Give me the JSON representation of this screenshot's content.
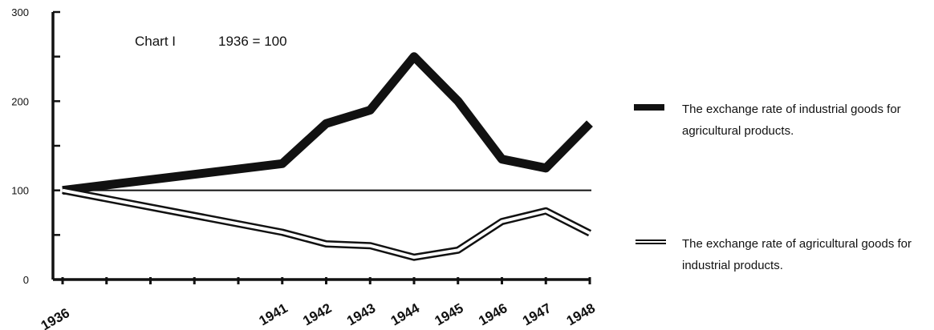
{
  "chart_data": {
    "type": "line",
    "title": "Chart I",
    "subtitle": "1936 = 100",
    "xlabel": "",
    "ylabel": "",
    "ylim": [
      0,
      300
    ],
    "yticks": [
      0,
      100,
      200,
      300
    ],
    "x": [
      "1936",
      "",
      "",
      "",
      "",
      "1941",
      "1942",
      "1943",
      "1944",
      "1945",
      "1946",
      "1947",
      "1948"
    ],
    "grid": false,
    "legend_position": "right",
    "series": [
      {
        "name": "The exchange rate of industrial goods for agricultural products.",
        "style": "thick-solid",
        "values": [
          100,
          null,
          null,
          null,
          null,
          130,
          175,
          190,
          250,
          200,
          135,
          125,
          175
        ]
      },
      {
        "name": "The exchange rate of agricultural goods for industrial products.",
        "style": "double-line",
        "values": [
          100,
          null,
          null,
          null,
          null,
          53,
          40,
          38,
          25,
          33,
          65,
          77,
          52
        ]
      }
    ],
    "reference_line": 100
  }
}
